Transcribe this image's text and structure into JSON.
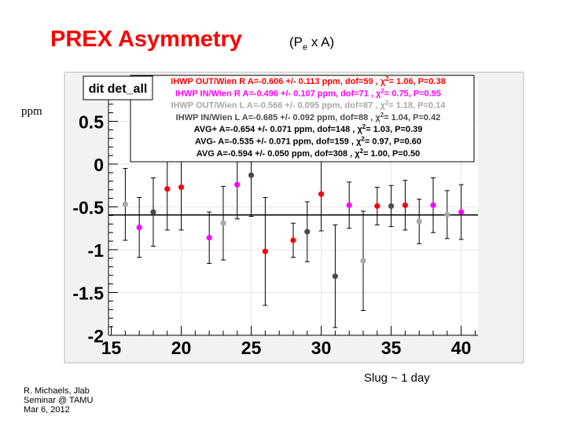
{
  "header": {
    "title": "PREX  Asymmetry",
    "subtitle_main": "(P",
    "subtitle_sub": "e",
    "subtitle_rest": " x A)"
  },
  "ylabel_text": "ppm",
  "xlabel_text": "Slug  ~ 1 day",
  "footer": {
    "lines": [
      "R. Michaels,  Jlab",
      "Seminar @ TAMU",
      " Mar 6, 2012"
    ]
  },
  "colors": {
    "red": "#ff0000",
    "magenta": "#ff00ff",
    "gray": "#a8a8a8",
    "dark": "#4a4a4a",
    "fit_line": "#000000",
    "frame_bg": "#f2f2f2"
  },
  "chart_data": {
    "type": "scatter",
    "hist_title": "dit det_all",
    "xlim": [
      14.8,
      41.2
    ],
    "ylim": [
      -2,
      1
    ],
    "xticks": [
      15,
      20,
      25,
      30,
      35,
      40
    ],
    "yticks": [
      {
        "v": 0.5,
        "label": "0.5"
      },
      {
        "v": 0,
        "label": "0"
      },
      {
        "v": -0.5,
        "label": "-0.5"
      },
      {
        "v": -1,
        "label": "-1"
      },
      {
        "v": -1.5,
        "label": "-1.5"
      },
      {
        "v": -2,
        "label": "-2"
      }
    ],
    "fit_value": -0.594,
    "legend": [
      {
        "prefix": "IHWP OUT/Wien R A=-0.606 +/- 0.113 ppm, dof=59 , ",
        "suffix": "= 1.06, P=0.38",
        "color": "#ff0000"
      },
      {
        "prefix": "IHWP IN/Wien R A=-0.496 +/- 0.107 ppm, dof=71 , ",
        "suffix": "= 0.75, P=0.95",
        "color": "#ff00ff"
      },
      {
        "prefix": "IHWP OUT/Wien L A=-0.566 +/- 0.095 ppm, dof=87 , ",
        "suffix": "= 1.18, P=0.14",
        "color": "#a8a8a8"
      },
      {
        "prefix": "IHWP IN/Wien L A=-0.685 +/- 0.092 ppm, dof=88 , ",
        "suffix": "= 1.04, P=0.42",
        "color": "#4a4a4a"
      },
      {
        "prefix": "AVG+  A=-0.654 +/- 0.071 ppm, dof=148 , ",
        "suffix": "= 1.03, P=0.39",
        "color": "#000000"
      },
      {
        "prefix": "AVG-  A=-0.535 +/- 0.071 ppm, dof=159 , ",
        "suffix": "= 0.97, P=0.60",
        "color": "#000000"
      },
      {
        "prefix": "AVG  A=-0.594 +/- 0.050 ppm, dof=308 , ",
        "suffix": "= 1.00, P=0.50",
        "color": "#000000"
      }
    ],
    "points": [
      {
        "x": 16.0,
        "y": -0.47,
        "err": 0.42,
        "group": "gray"
      },
      {
        "x": 17.0,
        "y": -0.74,
        "err": 0.35,
        "group": "magenta"
      },
      {
        "x": 18.0,
        "y": -0.56,
        "err": 0.4,
        "group": "dark"
      },
      {
        "x": 19.0,
        "y": -0.29,
        "err": 0.48,
        "group": "red"
      },
      {
        "x": 20.0,
        "y": -0.27,
        "err": 0.5,
        "group": "red"
      },
      {
        "x": 22.0,
        "y": -0.86,
        "err": 0.3,
        "group": "magenta"
      },
      {
        "x": 23.0,
        "y": -0.69,
        "err": 0.43,
        "group": "gray"
      },
      {
        "x": 24.0,
        "y": -0.24,
        "err": 0.4,
        "group": "magenta"
      },
      {
        "x": 25.0,
        "y": -0.13,
        "err": 0.48,
        "group": "dark"
      },
      {
        "x": 26.0,
        "y": -1.02,
        "err": 0.63,
        "group": "red"
      },
      {
        "x": 28.0,
        "y": -0.89,
        "err": 0.2,
        "group": "red"
      },
      {
        "x": 29.0,
        "y": -0.79,
        "err": 0.35,
        "group": "dark"
      },
      {
        "x": 30.0,
        "y": -0.35,
        "err": 0.43,
        "group": "red"
      },
      {
        "x": 31.0,
        "y": -1.31,
        "err": 0.6,
        "group": "dark"
      },
      {
        "x": 32.0,
        "y": -0.48,
        "err": 0.27,
        "group": "magenta"
      },
      {
        "x": 33.0,
        "y": -1.13,
        "err": 0.58,
        "group": "gray"
      },
      {
        "x": 34.0,
        "y": -0.49,
        "err": 0.22,
        "group": "red"
      },
      {
        "x": 35.0,
        "y": -0.49,
        "err": 0.24,
        "group": "dark"
      },
      {
        "x": 36.0,
        "y": -0.48,
        "err": 0.29,
        "group": "red"
      },
      {
        "x": 37.0,
        "y": -0.67,
        "err": 0.26,
        "group": "gray"
      },
      {
        "x": 38.0,
        "y": -0.48,
        "err": 0.32,
        "group": "magenta"
      },
      {
        "x": 39.0,
        "y": -0.59,
        "err": 0.28,
        "group": "gray"
      },
      {
        "x": 40.0,
        "y": -0.56,
        "err": 0.32,
        "group": "magenta"
      }
    ]
  }
}
